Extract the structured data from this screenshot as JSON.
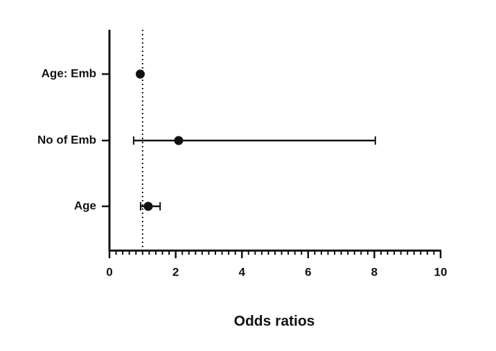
{
  "chart_data": {
    "type": "forest",
    "x_label": "Odds ratios",
    "categories": [
      "Age: Emb",
      "No of Emb",
      "Age"
    ],
    "values": [
      0.93,
      2.09,
      1.17
    ],
    "lower": [
      0.89,
      0.73,
      0.94
    ],
    "upper": [
      0.97,
      8.03,
      1.53
    ],
    "color": "#111111",
    "reference_line": 1,
    "xlim": [
      0,
      10
    ],
    "xticks": [
      0,
      2,
      4,
      6,
      8,
      10
    ],
    "xminorticks": [
      0.2,
      0.4,
      0.6,
      0.8,
      1,
      1.2,
      1.4,
      1.6,
      1.8,
      2.2,
      2.4,
      2.6,
      2.8,
      3,
      3.2,
      3.4,
      3.6,
      3.8,
      4.2,
      4.4,
      4.6,
      4.8,
      5,
      5.2,
      5.4,
      5.6,
      5.8,
      6.2,
      6.4,
      6.6,
      6.8,
      7,
      7.2,
      7.4,
      7.6,
      7.8,
      8.2,
      8.4,
      8.6,
      8.8,
      9,
      9.2,
      9.4,
      9.6,
      9.8
    ]
  }
}
